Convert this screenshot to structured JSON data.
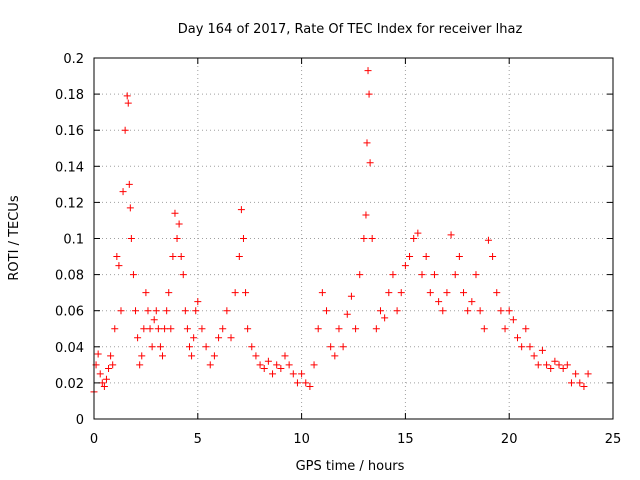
{
  "chart_data": {
    "type": "scatter",
    "title": "Day 164 of 2017, Rate Of TEC Index for receiver lhaz",
    "xlabel": "GPS time / hours",
    "ylabel": "ROTI / TECUs",
    "xlim": [
      0,
      25
    ],
    "ylim": [
      0,
      0.2
    ],
    "xticks": [
      0,
      5,
      10,
      15,
      20,
      25
    ],
    "yticks": [
      0,
      0.02,
      0.04,
      0.06,
      0.08,
      0.1,
      0.12,
      0.14,
      0.16,
      0.18,
      0.2
    ],
    "xtick_labels": [
      "0",
      "5",
      "10",
      "15",
      "20",
      "25"
    ],
    "ytick_labels": [
      "0",
      "0.02",
      "0.04",
      "0.06",
      "0.08",
      "0.1",
      "0.12",
      "0.14",
      "0.16",
      "0.18",
      "0.2"
    ],
    "grid": true,
    "marker": "+",
    "color": "#ff0000",
    "series": [
      {
        "x": [
          0.0,
          0.1,
          0.2,
          0.3,
          0.4,
          0.5,
          0.6,
          0.7,
          0.8,
          0.9,
          1.0,
          1.1,
          1.2,
          1.3,
          1.4,
          1.5,
          1.6,
          1.65,
          1.7,
          1.75,
          1.8,
          1.9,
          2.0,
          2.1,
          2.2,
          2.3,
          2.4,
          2.5,
          2.6,
          2.7,
          2.8,
          2.9,
          3.0,
          3.1,
          3.2,
          3.3,
          3.4,
          3.5,
          3.6,
          3.7,
          3.8,
          3.9,
          4.0,
          4.1,
          4.2,
          4.3,
          4.4,
          4.5,
          4.6,
          4.7,
          4.8,
          4.9,
          5.0,
          5.2,
          5.4,
          5.6,
          5.8,
          6.0,
          6.2,
          6.4,
          6.6,
          6.8,
          7.0,
          7.1,
          7.2,
          7.3,
          7.4,
          7.6,
          7.8,
          8.0,
          8.2,
          8.4,
          8.6,
          8.8,
          9.0,
          9.2,
          9.4,
          9.6,
          9.8,
          10.0,
          10.2,
          10.4,
          10.6,
          10.8,
          11.0,
          11.2,
          11.4,
          11.6,
          11.8,
          12.0,
          12.2,
          12.4,
          12.6,
          12.8,
          13.0,
          13.1,
          13.15,
          13.2,
          13.25,
          13.3,
          13.4,
          13.6,
          13.8,
          14.0,
          14.2,
          14.4,
          14.6,
          14.8,
          15.0,
          15.2,
          15.4,
          15.6,
          15.8,
          16.0,
          16.2,
          16.4,
          16.6,
          16.8,
          17.0,
          17.2,
          17.4,
          17.6,
          17.8,
          18.0,
          18.2,
          18.4,
          18.6,
          18.8,
          19.0,
          19.2,
          19.4,
          19.6,
          19.8,
          20.0,
          20.2,
          20.4,
          20.6,
          20.8,
          21.0,
          21.2,
          21.4,
          21.6,
          21.8,
          22.0,
          22.2,
          22.4,
          22.6,
          22.8,
          23.0,
          23.2,
          23.4,
          23.6,
          23.8
        ],
        "y": [
          0.015,
          0.03,
          0.036,
          0.025,
          0.02,
          0.018,
          0.022,
          0.028,
          0.035,
          0.03,
          0.05,
          0.09,
          0.085,
          0.06,
          0.126,
          0.16,
          0.179,
          0.175,
          0.13,
          0.117,
          0.1,
          0.08,
          0.06,
          0.045,
          0.03,
          0.035,
          0.05,
          0.07,
          0.06,
          0.05,
          0.04,
          0.055,
          0.06,
          0.05,
          0.04,
          0.035,
          0.05,
          0.06,
          0.07,
          0.05,
          0.09,
          0.114,
          0.1,
          0.108,
          0.09,
          0.08,
          0.06,
          0.05,
          0.04,
          0.035,
          0.045,
          0.06,
          0.065,
          0.05,
          0.04,
          0.03,
          0.035,
          0.045,
          0.05,
          0.06,
          0.045,
          0.07,
          0.09,
          0.116,
          0.1,
          0.07,
          0.05,
          0.04,
          0.035,
          0.03,
          0.028,
          0.032,
          0.025,
          0.03,
          0.028,
          0.035,
          0.03,
          0.025,
          0.02,
          0.025,
          0.02,
          0.018,
          0.03,
          0.05,
          0.07,
          0.06,
          0.04,
          0.035,
          0.05,
          0.04,
          0.058,
          0.068,
          0.05,
          0.08,
          0.1,
          0.113,
          0.153,
          0.193,
          0.18,
          0.142,
          0.1,
          0.05,
          0.06,
          0.056,
          0.07,
          0.08,
          0.06,
          0.07,
          0.085,
          0.09,
          0.1,
          0.103,
          0.08,
          0.09,
          0.07,
          0.08,
          0.065,
          0.06,
          0.07,
          0.102,
          0.08,
          0.09,
          0.07,
          0.06,
          0.065,
          0.08,
          0.06,
          0.05,
          0.099,
          0.09,
          0.07,
          0.06,
          0.05,
          0.06,
          0.055,
          0.045,
          0.04,
          0.05,
          0.04,
          0.035,
          0.03,
          0.038,
          0.03,
          0.028,
          0.032,
          0.03,
          0.028,
          0.03,
          0.02,
          0.025,
          0.02,
          0.018,
          0.025
        ]
      }
    ]
  }
}
